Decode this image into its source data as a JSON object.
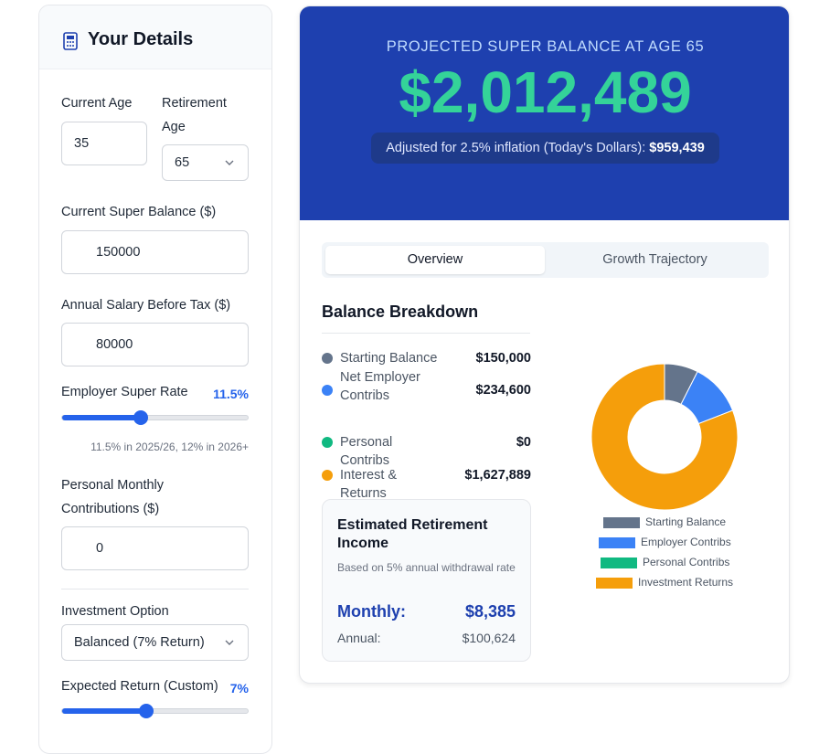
{
  "sidebar": {
    "title": "Your Details",
    "current_age": {
      "label": "Current Age",
      "value": "35"
    },
    "retirement_age": {
      "label": "Retirement Age",
      "value": "65"
    },
    "super_balance": {
      "label": "Current Super Balance ($)",
      "value": "150000"
    },
    "salary": {
      "label": "Annual Salary Before Tax ($)",
      "value": "80000"
    },
    "employer_rate": {
      "label": "Employer Super Rate",
      "value": "11.5%",
      "note": "11.5% in 2025/26, 12% in 2026+"
    },
    "personal": {
      "label": "Personal Monthly Contributions ($)",
      "value": "0"
    },
    "investment": {
      "label": "Investment Option",
      "value": "Balanced (7% Return)"
    },
    "expected_return": {
      "label": "Expected Return (Custom)",
      "value": "7%"
    }
  },
  "summary": {
    "heading": "PROJECTED SUPER BALANCE AT AGE 65",
    "amount": "$2,012,489",
    "adjusted_label": "Adjusted for 2.5% inflation (Today's Dollars):",
    "adjusted_value": "$959,439"
  },
  "tabs": [
    "Overview",
    "Growth Trajectory"
  ],
  "breakdown": {
    "title": "Balance Breakdown",
    "items": [
      {
        "label": "Starting Balance",
        "value": "$150,000"
      },
      {
        "label": "Net Employer Contribs",
        "value": "$234,600"
      },
      {
        "label": "Personal Contribs",
        "value": "$0"
      },
      {
        "label": "Interest & Returns",
        "value": "$1,627,889"
      }
    ]
  },
  "income": {
    "title": "Estimated Retirement Income",
    "note": "Based on 5% annual withdrawal rate",
    "monthly_label": "Monthly:",
    "monthly_value": "$8,385",
    "annual_label": "Annual:",
    "annual_value": "$100,624"
  },
  "chart_data": {
    "type": "pie",
    "categories": [
      "Starting Balance",
      "Employer Contribs",
      "Personal Contribs",
      "Investment Returns"
    ],
    "values": [
      150000,
      234600,
      0,
      1627889
    ],
    "colors": [
      "#64748b",
      "#3b82f6",
      "#10b981",
      "#f59e0b"
    ]
  }
}
